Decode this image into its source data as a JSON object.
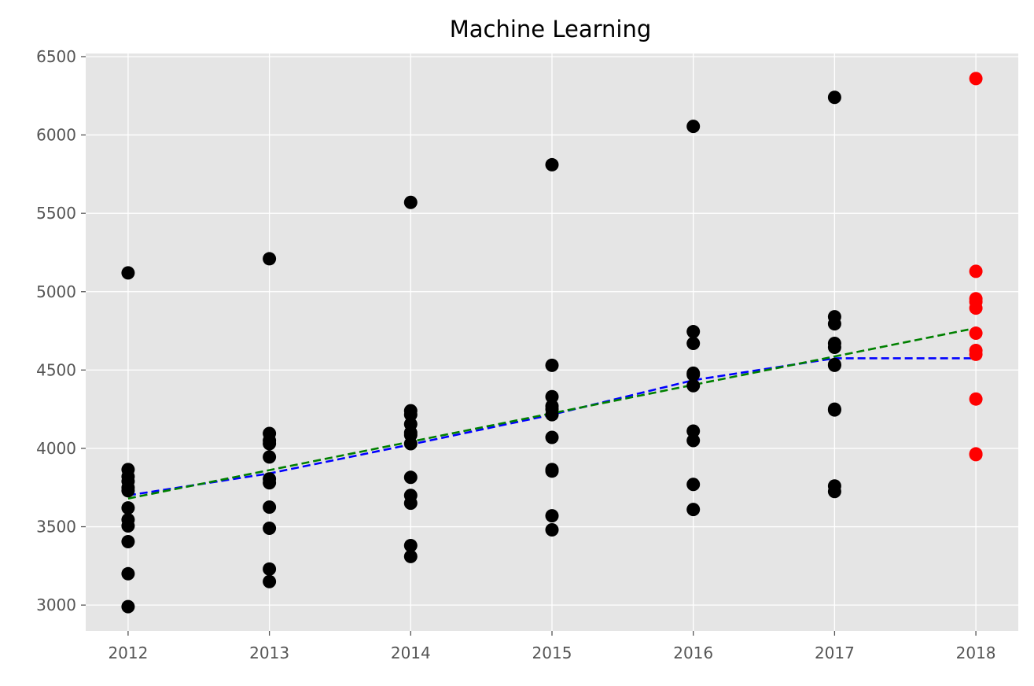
{
  "chart_data": {
    "type": "scatter",
    "title": "Machine Learning",
    "xlabel": "",
    "ylabel": "",
    "xlim": [
      2011.7,
      2018.3
    ],
    "ylim": [
      2835,
      6520
    ],
    "x_ticks": [
      2012,
      2013,
      2014,
      2015,
      2016,
      2017,
      2018
    ],
    "y_ticks": [
      3000,
      3500,
      4000,
      4500,
      5000,
      5500,
      6000,
      6500
    ],
    "grid": true,
    "legend": "none",
    "colors": {
      "background": "#e5e5e5",
      "grid": "#ffffff",
      "observed": "#000000",
      "predicted": "#ff0000",
      "blue_line": "#0000ff",
      "green_line": "#008000"
    },
    "series": [
      {
        "kind": "points",
        "color": "#000000",
        "points": [
          [
            2012,
            5120
          ],
          [
            2012,
            3865
          ],
          [
            2012,
            3820
          ],
          [
            2012,
            3790
          ],
          [
            2012,
            3750
          ],
          [
            2012,
            3730
          ],
          [
            2012,
            3620
          ],
          [
            2012,
            3545
          ],
          [
            2012,
            3505
          ],
          [
            2012,
            3405
          ],
          [
            2012,
            3200
          ],
          [
            2012,
            2990
          ],
          [
            2013,
            5210
          ],
          [
            2013,
            4095
          ],
          [
            2013,
            4050
          ],
          [
            2013,
            4030
          ],
          [
            2013,
            3945
          ],
          [
            2013,
            3805
          ],
          [
            2013,
            3780
          ],
          [
            2013,
            3625
          ],
          [
            2013,
            3490
          ],
          [
            2013,
            3230
          ],
          [
            2013,
            3150
          ],
          [
            2014,
            5570
          ],
          [
            2014,
            4240
          ],
          [
            2014,
            4215
          ],
          [
            2014,
            4155
          ],
          [
            2014,
            4100
          ],
          [
            2014,
            4085
          ],
          [
            2014,
            4030
          ],
          [
            2014,
            3815
          ],
          [
            2014,
            3700
          ],
          [
            2014,
            3650
          ],
          [
            2014,
            3380
          ],
          [
            2014,
            3310
          ],
          [
            2015,
            5810
          ],
          [
            2015,
            4530
          ],
          [
            2015,
            4330
          ],
          [
            2015,
            4270
          ],
          [
            2015,
            4250
          ],
          [
            2015,
            4215
          ],
          [
            2015,
            4070
          ],
          [
            2015,
            3865
          ],
          [
            2015,
            3855
          ],
          [
            2015,
            3570
          ],
          [
            2015,
            3480
          ],
          [
            2016,
            6055
          ],
          [
            2016,
            4745
          ],
          [
            2016,
            4670
          ],
          [
            2016,
            4480
          ],
          [
            2016,
            4470
          ],
          [
            2016,
            4400
          ],
          [
            2016,
            4110
          ],
          [
            2016,
            4050
          ],
          [
            2016,
            3770
          ],
          [
            2016,
            3610
          ],
          [
            2017,
            6240
          ],
          [
            2017,
            4840
          ],
          [
            2017,
            4795
          ],
          [
            2017,
            4670
          ],
          [
            2017,
            4645
          ],
          [
            2017,
            4535
          ],
          [
            2017,
            4530
          ],
          [
            2017,
            4250
          ],
          [
            2017,
            4245
          ],
          [
            2017,
            3760
          ],
          [
            2017,
            3725
          ]
        ]
      },
      {
        "kind": "points",
        "color": "#ff0000",
        "points": [
          [
            2018,
            6360
          ],
          [
            2018,
            5130
          ],
          [
            2018,
            4955
          ],
          [
            2018,
            4935
          ],
          [
            2018,
            4895
          ],
          [
            2018,
            4735
          ],
          [
            2018,
            4625
          ],
          [
            2018,
            4600
          ],
          [
            2018,
            4315
          ],
          [
            2018,
            3965
          ],
          [
            2018,
            3960
          ]
        ]
      },
      {
        "kind": "dashed-line",
        "color": "#0000ff",
        "x": [
          2012,
          2013,
          2014,
          2015,
          2016,
          2017,
          2018
        ],
        "values": [
          3700,
          3840,
          4025,
          4215,
          4435,
          4575,
          4575
        ]
      },
      {
        "kind": "dashed-line",
        "color": "#008000",
        "x": [
          2012,
          2018
        ],
        "values": [
          3680,
          4768
        ]
      }
    ]
  }
}
